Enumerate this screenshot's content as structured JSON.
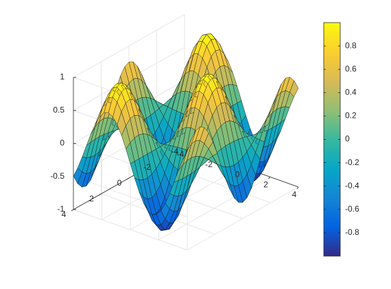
{
  "chart_data": {
    "type": "surface",
    "function": "z = sin(x) * cos(y)",
    "x_range": [
      -4,
      4
    ],
    "y_range": [
      -4,
      4
    ],
    "z_range": [
      -1,
      1
    ],
    "grid_size": 26,
    "colormap": "parula",
    "grid": true,
    "view": {
      "azimuth": -37.5,
      "elevation": 30
    },
    "x_ticks": [
      "-4",
      "-2",
      "0",
      "2",
      "4"
    ],
    "y_ticks": [
      "-4",
      "-2",
      "0",
      "2",
      "4"
    ],
    "z_ticks": [
      "-1",
      "-0.5",
      "0",
      "0.5",
      "1"
    ],
    "colorbar": {
      "ticks": [
        "0.8",
        "0.6",
        "0.4",
        "0.2",
        "0",
        "-0.2",
        "-0.4",
        "-0.6",
        "-0.8"
      ],
      "tick_values": [
        0.8,
        0.6,
        0.4,
        0.2,
        0,
        -0.2,
        -0.4,
        -0.6,
        -0.8
      ],
      "range": [
        -1,
        1
      ]
    },
    "title": "",
    "xlabel": "",
    "ylabel": "",
    "zlabel": ""
  }
}
